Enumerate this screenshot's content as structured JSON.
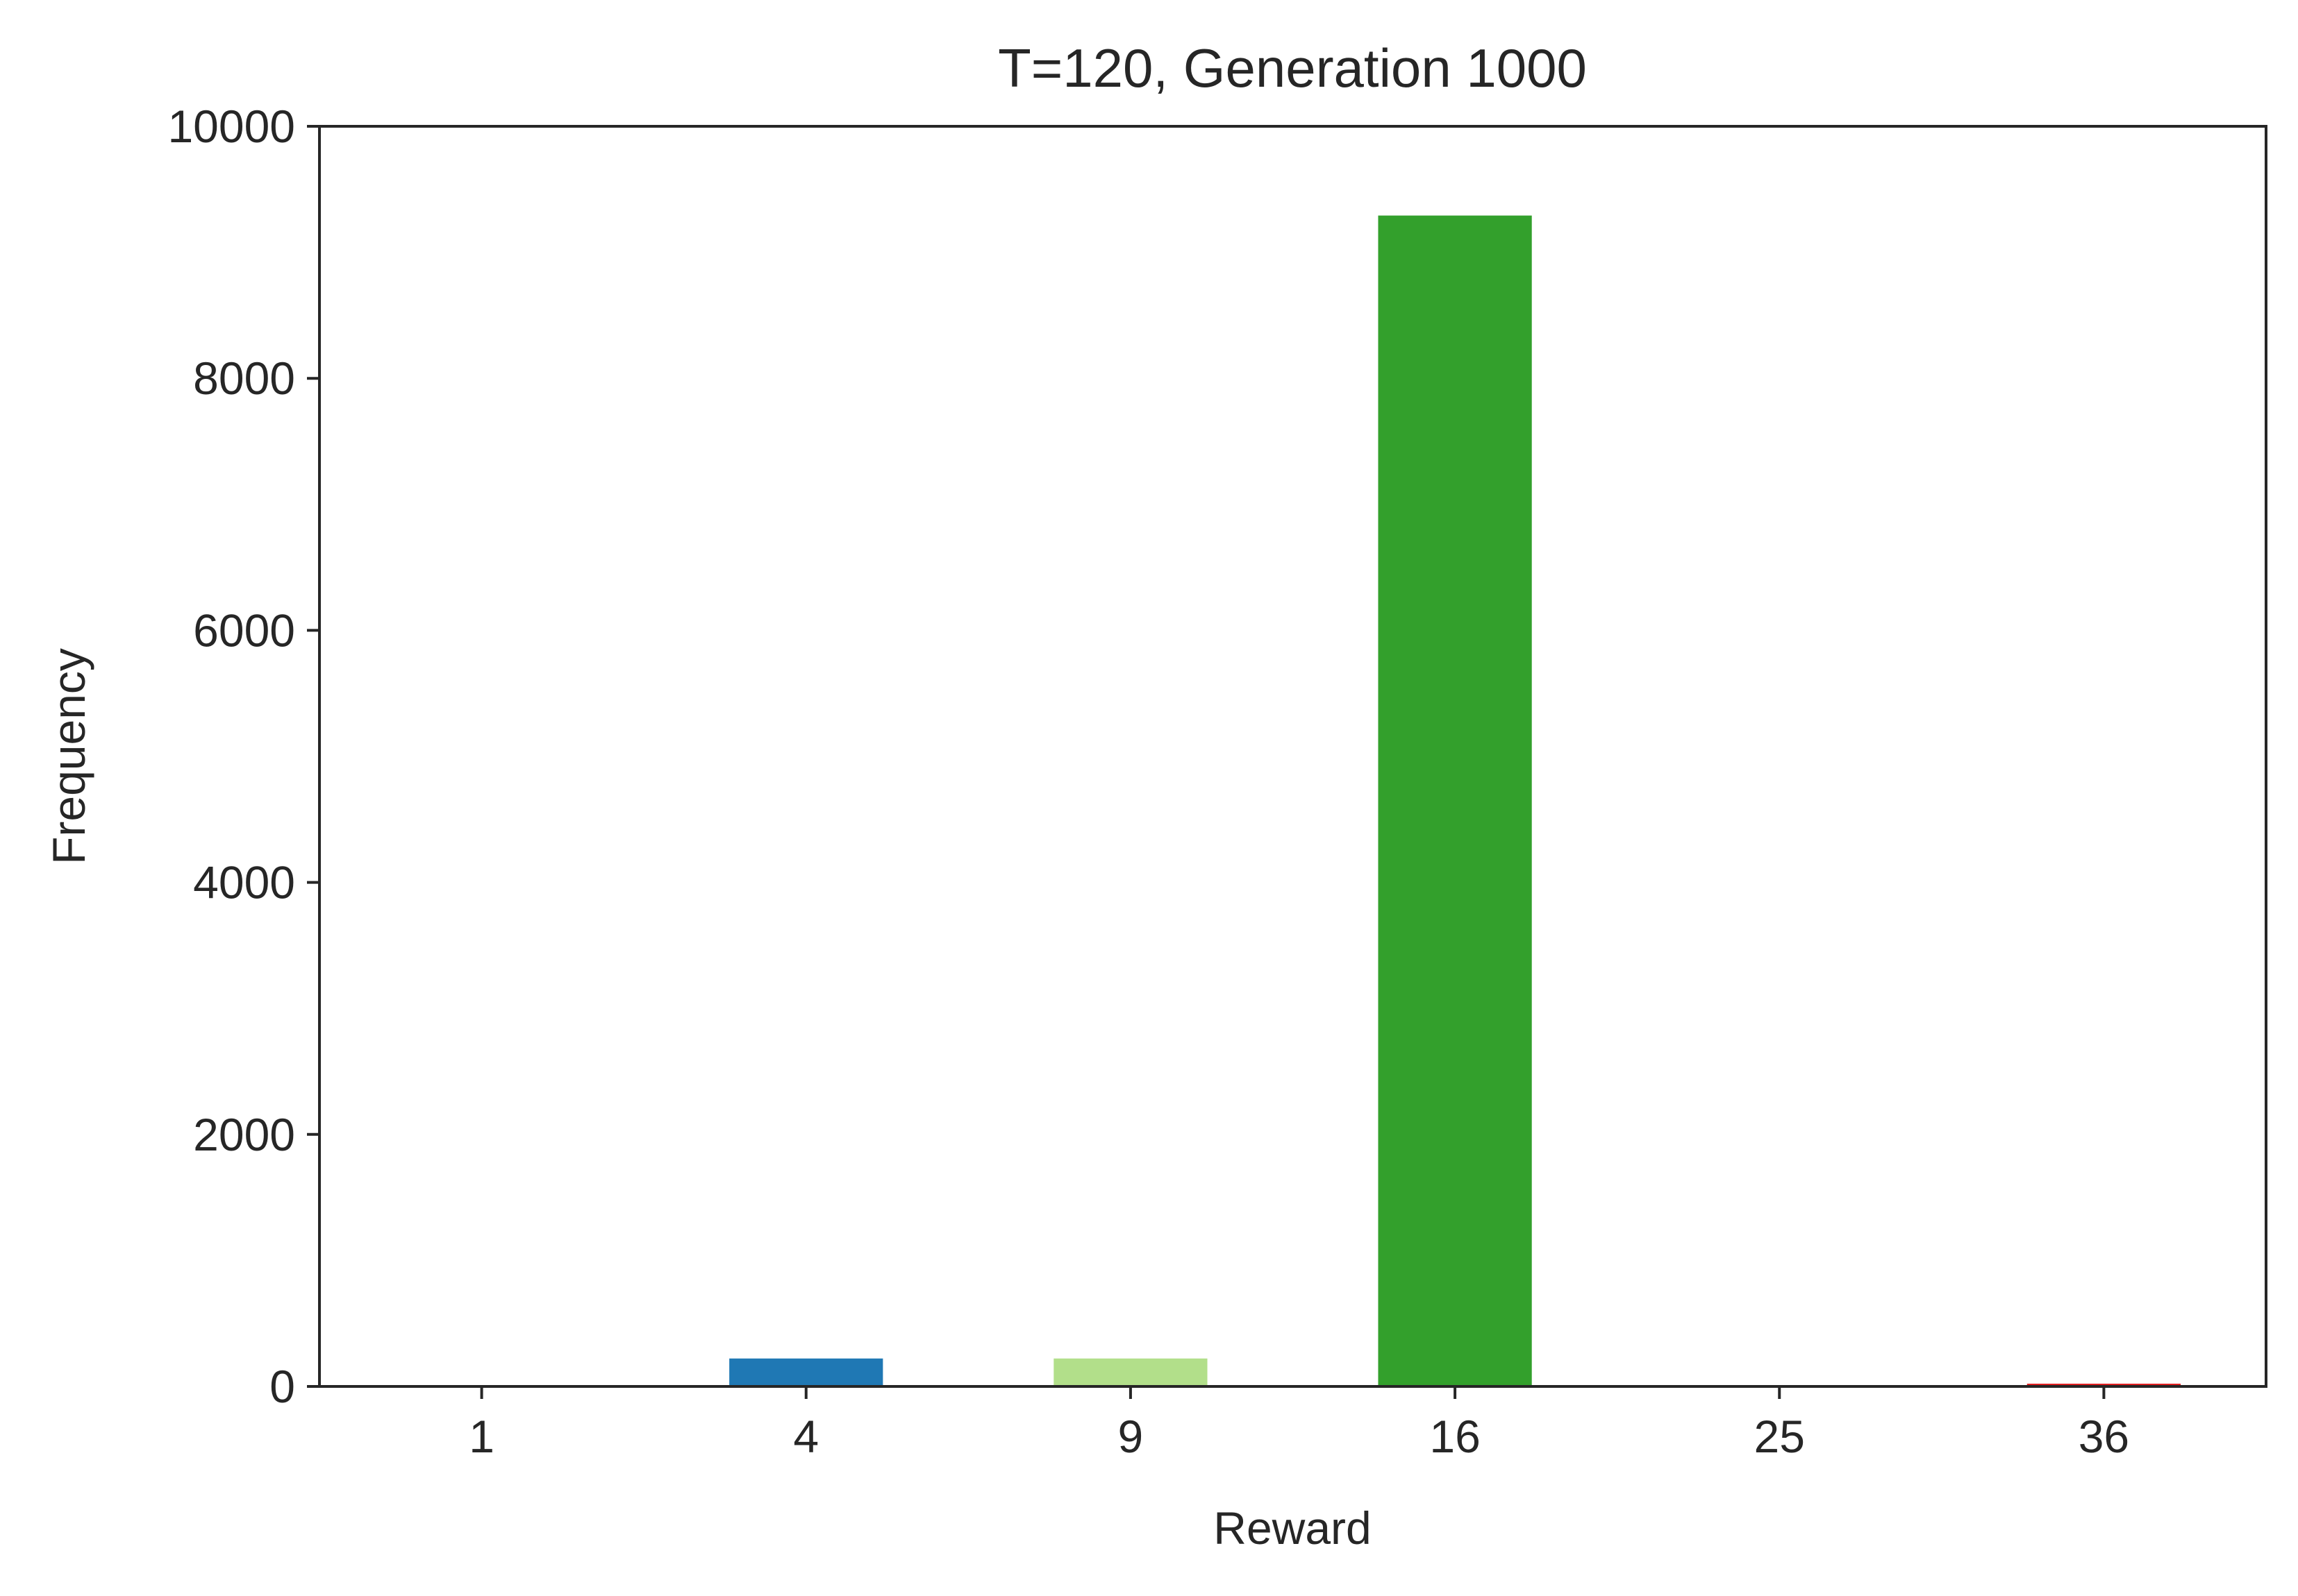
{
  "chart_data": {
    "type": "bar",
    "title": "T=120, Generation 1000",
    "xlabel": "Reward",
    "ylabel": "Frequency",
    "categories": [
      "1",
      "4",
      "9",
      "16",
      "25",
      "36"
    ],
    "values": [
      0,
      230,
      230,
      9300,
      0,
      30
    ],
    "colors": [
      "#a6cee3",
      "#1f78b4",
      "#b2df8a",
      "#33a02c",
      "#fb9a99",
      "#e31a1c"
    ],
    "ylim": [
      0,
      10000
    ],
    "yticks": [
      0,
      2000,
      4000,
      6000,
      8000,
      10000
    ],
    "ytick_labels": [
      "0",
      "2000",
      "4000",
      "6000",
      "8000",
      "10000"
    ],
    "grid": false,
    "legend": "none"
  }
}
